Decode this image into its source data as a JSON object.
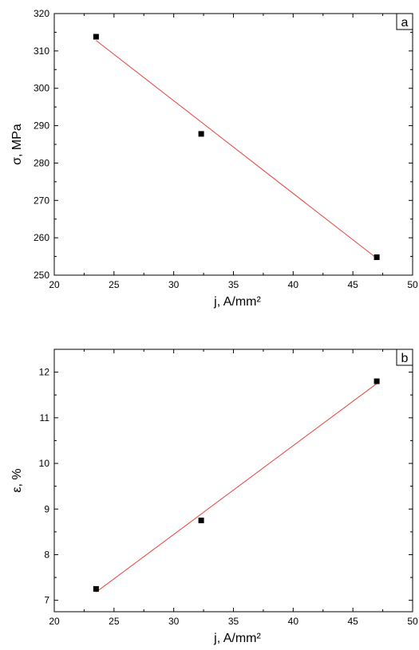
{
  "chart_data": [
    {
      "type": "scatter",
      "panel_label": "a",
      "x": [
        23.5,
        32.3,
        47.0
      ],
      "series": [
        {
          "values": [
            313.8,
            287.8,
            254.8
          ],
          "color": "#000000",
          "marker": "square"
        }
      ],
      "fit": {
        "x": [
          23.5,
          47.0
        ],
        "y": [
          312.8,
          254.5
        ],
        "color": "#e8413a"
      },
      "xlabel": "j, A/mm²",
      "ylabel": "σ, MPa",
      "xlim": [
        20,
        50
      ],
      "ylim": [
        250,
        320
      ],
      "xticks": [
        "20",
        "25",
        "30",
        "35",
        "40",
        "45",
        "50"
      ],
      "yticks": [
        "250",
        "260",
        "270",
        "280",
        "290",
        "300",
        "310",
        "320"
      ],
      "grid": false
    },
    {
      "type": "scatter",
      "panel_label": "b",
      "x": [
        23.5,
        32.3,
        47.0
      ],
      "series": [
        {
          "values": [
            7.25,
            8.75,
            11.8
          ],
          "color": "#000000",
          "marker": "square"
        }
      ],
      "fit": {
        "x": [
          23.5,
          47.0
        ],
        "y": [
          7.18,
          11.75
        ],
        "color": "#e8413a"
      },
      "xlabel": "j, A/mm²",
      "ylabel": "ε, %",
      "xlim": [
        20,
        50
      ],
      "ylim": [
        6.75,
        12.5
      ],
      "xticks": [
        "20",
        "25",
        "30",
        "35",
        "40",
        "45",
        "50"
      ],
      "yticks": [
        "7",
        "8",
        "9",
        "10",
        "11",
        "12"
      ],
      "grid": false
    }
  ]
}
